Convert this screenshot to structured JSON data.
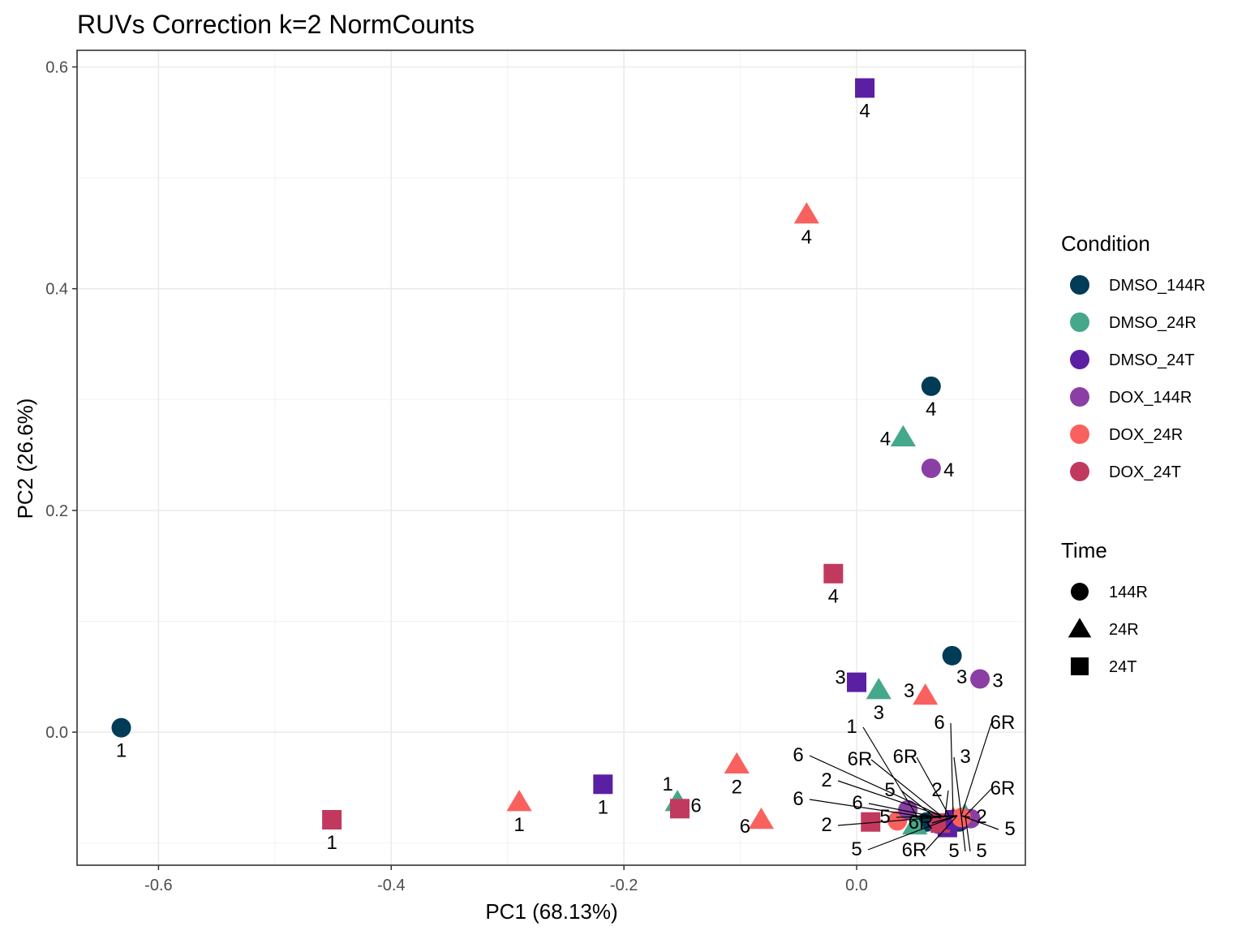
{
  "chart_data": {
    "type": "scatter",
    "title": "RUVs Correction k=2 NormCounts",
    "xlabel": "PC1 (68.13%)",
    "ylabel": "PC2 (26.6%)",
    "xlim": [
      -0.67,
      0.145
    ],
    "ylim": [
      -0.12,
      0.615
    ],
    "xticks": [
      -0.6,
      -0.4,
      -0.2,
      0.0
    ],
    "xtick_labels": [
      "-0.6",
      "-0.4",
      "-0.2",
      "0.0"
    ],
    "yticks": [
      0.0,
      0.2,
      0.4,
      0.6
    ],
    "ytick_labels": [
      "0.0",
      "0.2",
      "0.4",
      "0.6"
    ],
    "grid": true,
    "legend_position": "right",
    "legends": {
      "condition": {
        "title": "Condition",
        "entries": [
          {
            "label": "DMSO_144R",
            "color": "#003B57"
          },
          {
            "label": "DMSO_24R",
            "color": "#45A88A"
          },
          {
            "label": "DMSO_24T",
            "color": "#5A1FA3"
          },
          {
            "label": "DOX_144R",
            "color": "#8B3FA5"
          },
          {
            "label": "DOX_24R",
            "color": "#F9615E"
          },
          {
            "label": "DOX_24T",
            "color": "#C2395F"
          }
        ]
      },
      "time": {
        "title": "Time",
        "entries": [
          {
            "label": "144R",
            "shape": "circle"
          },
          {
            "label": "24R",
            "shape": "triangle"
          },
          {
            "label": "24T",
            "shape": "square"
          }
        ]
      }
    },
    "points": [
      {
        "x": -0.632,
        "y": 0.004,
        "condition": "DMSO_144R",
        "time": "144R",
        "label": "1"
      },
      {
        "x": 0.064,
        "y": 0.312,
        "condition": "DMSO_144R",
        "time": "144R",
        "label": "4"
      },
      {
        "x": 0.082,
        "y": 0.069,
        "condition": "DMSO_144R",
        "time": "144R",
        "label": "3"
      },
      {
        "x": 0.007,
        "y": 0.581,
        "condition": "DMSO_24T",
        "time": "24T",
        "label": "4"
      },
      {
        "x": 0.0,
        "y": 0.045,
        "condition": "DMSO_24T",
        "time": "24T",
        "label": "3"
      },
      {
        "x": -0.218,
        "y": -0.047,
        "condition": "DMSO_24T",
        "time": "24T",
        "label": "1"
      },
      {
        "x": -0.043,
        "y": 0.467,
        "condition": "DOX_24R",
        "time": "24R",
        "label": "4"
      },
      {
        "x": 0.059,
        "y": 0.033,
        "condition": "DOX_24R",
        "time": "24R",
        "label": "3"
      },
      {
        "x": -0.103,
        "y": -0.029,
        "condition": "DOX_24R",
        "time": "24R",
        "label": "2"
      },
      {
        "x": -0.29,
        "y": -0.063,
        "condition": "DOX_24R",
        "time": "24R",
        "label": "1"
      },
      {
        "x": -0.082,
        "y": -0.079,
        "condition": "DOX_24R",
        "time": "24R",
        "label": "6"
      },
      {
        "x": 0.04,
        "y": 0.266,
        "condition": "DMSO_24R",
        "time": "24R",
        "label": "4"
      },
      {
        "x": 0.019,
        "y": 0.038,
        "condition": "DMSO_24R",
        "time": "24R",
        "label": "3"
      },
      {
        "x": -0.154,
        "y": -0.063,
        "condition": "DMSO_24R",
        "time": "24R",
        "label": "1"
      },
      {
        "x": 0.064,
        "y": 0.238,
        "condition": "DOX_144R",
        "time": "144R",
        "label": "4"
      },
      {
        "x": 0.106,
        "y": 0.048,
        "condition": "DOX_144R",
        "time": "144R",
        "label": "3"
      },
      {
        "x": -0.02,
        "y": 0.143,
        "condition": "DOX_24T",
        "time": "24T",
        "label": "4"
      },
      {
        "x": -0.152,
        "y": -0.069,
        "condition": "DOX_24T",
        "time": "24T",
        "label": "6"
      },
      {
        "x": -0.451,
        "y": -0.079,
        "condition": "DOX_24T",
        "time": "24T",
        "label": "1"
      }
    ]
  }
}
